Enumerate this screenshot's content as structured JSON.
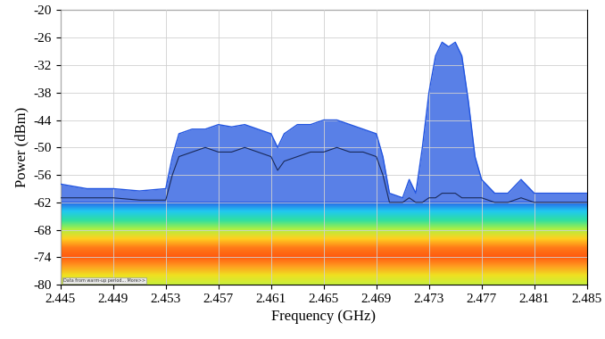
{
  "chart_data": {
    "type": "line",
    "xlabel": "Frequency (GHz)",
    "ylabel": "Power (dBm)",
    "note": "Data from warm-up period... More>>",
    "x": [
      2.445,
      2.447,
      2.449,
      2.451,
      2.453,
      2.4535,
      2.454,
      2.455,
      2.456,
      2.457,
      2.458,
      2.459,
      2.46,
      2.461,
      2.4615,
      2.462,
      2.463,
      2.464,
      2.465,
      2.466,
      2.467,
      2.468,
      2.469,
      2.4695,
      2.47,
      2.471,
      2.4715,
      2.472,
      2.4725,
      2.473,
      2.4735,
      2.474,
      2.4745,
      2.475,
      2.4755,
      2.476,
      2.4765,
      2.477,
      2.478,
      2.479,
      2.48,
      2.481,
      2.483,
      2.485
    ],
    "values": [
      -58,
      -59,
      -59,
      -59.5,
      -59,
      -52,
      -47,
      -46,
      -46,
      -45,
      -45.5,
      -45,
      -46,
      -47,
      -50,
      -47,
      -45,
      -45,
      -44,
      -44,
      -45,
      -46,
      -47,
      -52,
      -60,
      -61,
      -57,
      -60,
      -50,
      -38,
      -30,
      -27,
      -28,
      -27,
      -30,
      -40,
      -52,
      -57,
      -60,
      -60,
      -57,
      -60,
      -60,
      -60
    ],
    "trace_values": [
      -61,
      -61,
      -61,
      -61.5,
      -61.5,
      -56,
      -52,
      -51,
      -50,
      -51,
      -51,
      -50,
      -51,
      -52,
      -55,
      -53,
      -52,
      -51,
      -51,
      -50,
      -51,
      -51,
      -52,
      -56,
      -62,
      -62,
      -61,
      -62,
      -62,
      -61,
      -61,
      -60,
      -60,
      -60,
      -61,
      -61,
      -61,
      -61,
      -62,
      -62,
      -61,
      -62,
      -62,
      -62
    ],
    "color": "#2255e0",
    "trace_color": "#1a2a5a",
    "noise_floor": {
      "low": -80,
      "high": -62
    },
    "xlim": [
      2.445,
      2.485
    ],
    "ylim": [
      -80,
      -20
    ],
    "xticks": [
      2.445,
      2.449,
      2.453,
      2.457,
      2.461,
      2.465,
      2.469,
      2.473,
      2.477,
      2.481,
      2.485
    ],
    "yticks": [
      -80,
      -74,
      -68,
      -62,
      -56,
      -50,
      -44,
      -38,
      -32,
      -26,
      -20
    ],
    "grid": true
  }
}
